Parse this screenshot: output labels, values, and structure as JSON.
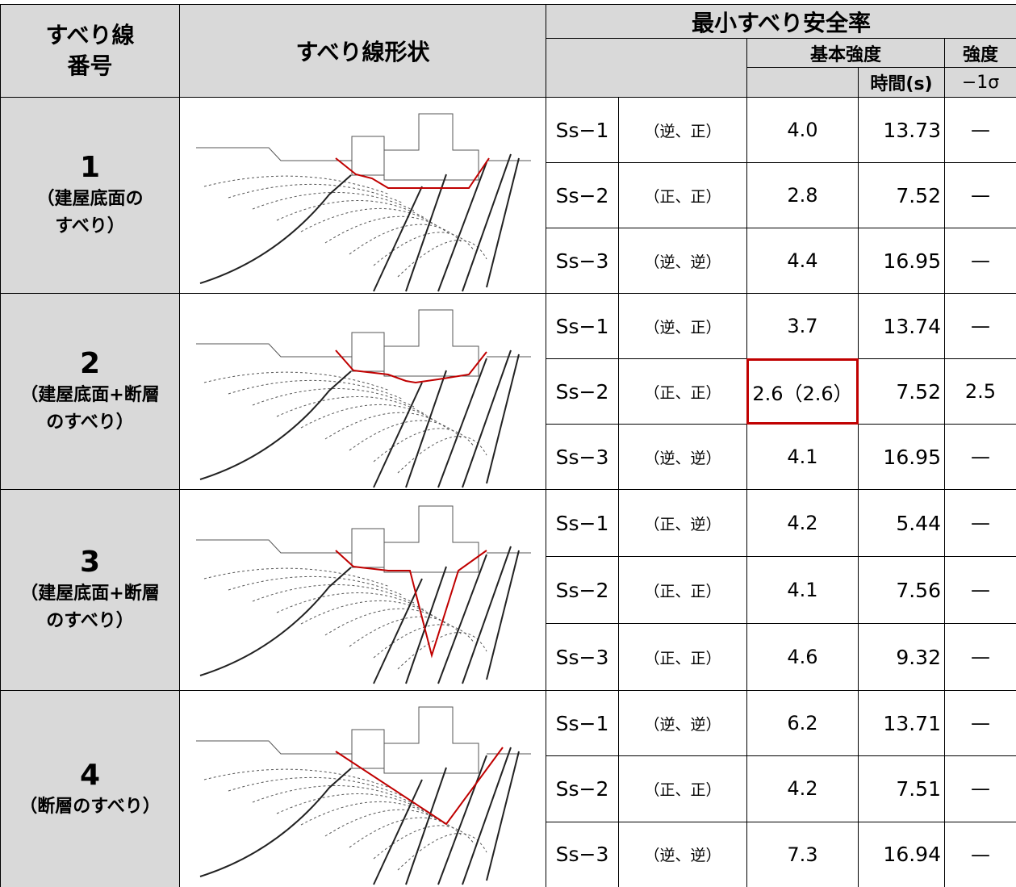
{
  "header": {
    "col1": [
      "すべり線",
      "番号"
    ],
    "col2": "すべり線形状",
    "main": "最小すべり安全率",
    "basic": "基本強度",
    "time": "時間(s)",
    "strength": "強度",
    "sigma": "−1σ"
  },
  "groups": [
    {
      "number": "1",
      "label": [
        "（建屋底面の",
        "すべり）"
      ],
      "rows": [
        {
          "wave": "Ss−1",
          "sign": "（逆、正）",
          "factor": "4.0",
          "time": "13.73",
          "strength": "—"
        },
        {
          "wave": "Ss−2",
          "sign": "（正、正）",
          "factor": "2.8",
          "time": "7.52",
          "strength": "—"
        },
        {
          "wave": "Ss−3",
          "sign": "（逆、逆）",
          "factor": "4.4",
          "time": "16.95",
          "strength": "—"
        }
      ]
    },
    {
      "number": "2",
      "label": [
        "（建屋底面+断層",
        "のすべり）"
      ],
      "rows": [
        {
          "wave": "Ss−1",
          "sign": "（逆、正）",
          "factor": "3.7",
          "time": "13.74",
          "strength": "—"
        },
        {
          "wave": "Ss−2",
          "sign": "（正、正）",
          "factor": "2.6（2.6）",
          "time": "7.52",
          "strength": "2.5",
          "highlight": true
        },
        {
          "wave": "Ss−3",
          "sign": "（逆、逆）",
          "factor": "4.1",
          "time": "16.95",
          "strength": "—"
        }
      ]
    },
    {
      "number": "3",
      "label": [
        "（建屋底面+断層",
        "のすべり）"
      ],
      "rows": [
        {
          "wave": "Ss−1",
          "sign": "（正、逆）",
          "factor": "4.2",
          "time": "5.44",
          "strength": "—"
        },
        {
          "wave": "Ss−2",
          "sign": "（正、正）",
          "factor": "4.1",
          "time": "7.56",
          "strength": "—"
        },
        {
          "wave": "Ss−3",
          "sign": "（正、正）",
          "factor": "4.6",
          "time": "9.32",
          "strength": "—"
        }
      ]
    },
    {
      "number": "4",
      "label": [
        "（断層のすべり）"
      ],
      "rows": [
        {
          "wave": "Ss−1",
          "sign": "（逆、逆）",
          "factor": "6.2",
          "time": "13.71",
          "strength": "—"
        },
        {
          "wave": "Ss−2",
          "sign": "（正、正）",
          "factor": "4.2",
          "time": "7.51",
          "strength": "—"
        },
        {
          "wave": "Ss−3",
          "sign": "（逆、逆）",
          "factor": "7.3",
          "time": "16.94",
          "strength": "—"
        }
      ]
    }
  ]
}
